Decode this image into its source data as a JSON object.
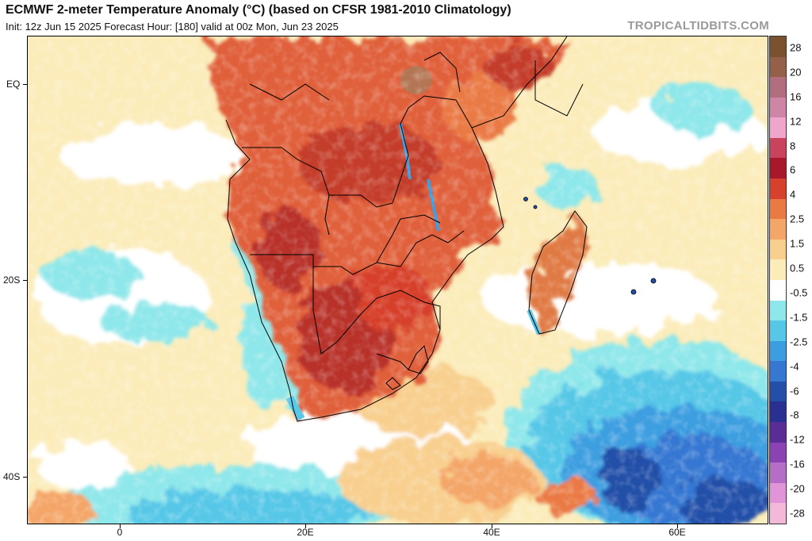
{
  "header": {
    "title": "ECMWF 2-meter Temperature Anomaly (°C) (based on CFSR 1981-2010 Climatology)",
    "subtitle": "Init: 12z Jun 15 2025   Forecast Hour: [180]   valid at 00z Mon, Jun 23 2025",
    "brand": "TROPICALTIDBITS.COM"
  },
  "axes": {
    "lat_labels": [
      "EQ",
      "20S",
      "40S"
    ],
    "lon_labels": [
      "0",
      "20E",
      "40E",
      "60E"
    ]
  },
  "colorbar": {
    "labels": [
      "28",
      "20",
      "16",
      "12",
      "8",
      "6",
      "4",
      "2.5",
      "1.5",
      "0.5",
      "-0.5",
      "-1.5",
      "-2.5",
      "-4",
      "-6",
      "-8",
      "-12",
      "-16",
      "-20",
      "-28"
    ],
    "colors": [
      "#7a5230",
      "#94604a",
      "#b26e7e",
      "#cf86a6",
      "#f0a5cd",
      "#c9425e",
      "#a8172a",
      "#d6402c",
      "#ea7a44",
      "#f4a668",
      "#f8cf8e",
      "#fbecba",
      "#ffffff",
      "#8ee7ea",
      "#56c7e7",
      "#3c9ee0",
      "#3677d2",
      "#234fa8",
      "#2a3092",
      "#5a2c95",
      "#8b43b3",
      "#b46ec8",
      "#e194d8",
      "#f4b9d8"
    ]
  },
  "map_colors": {
    "ocean_neutral": "#fbecba",
    "warm_land": "#e0603a",
    "very_warm": "#b8332a",
    "cool": "#8ee7ea",
    "cold_ocean": "#3c9ee0",
    "very_cold": "#234fa8"
  }
}
